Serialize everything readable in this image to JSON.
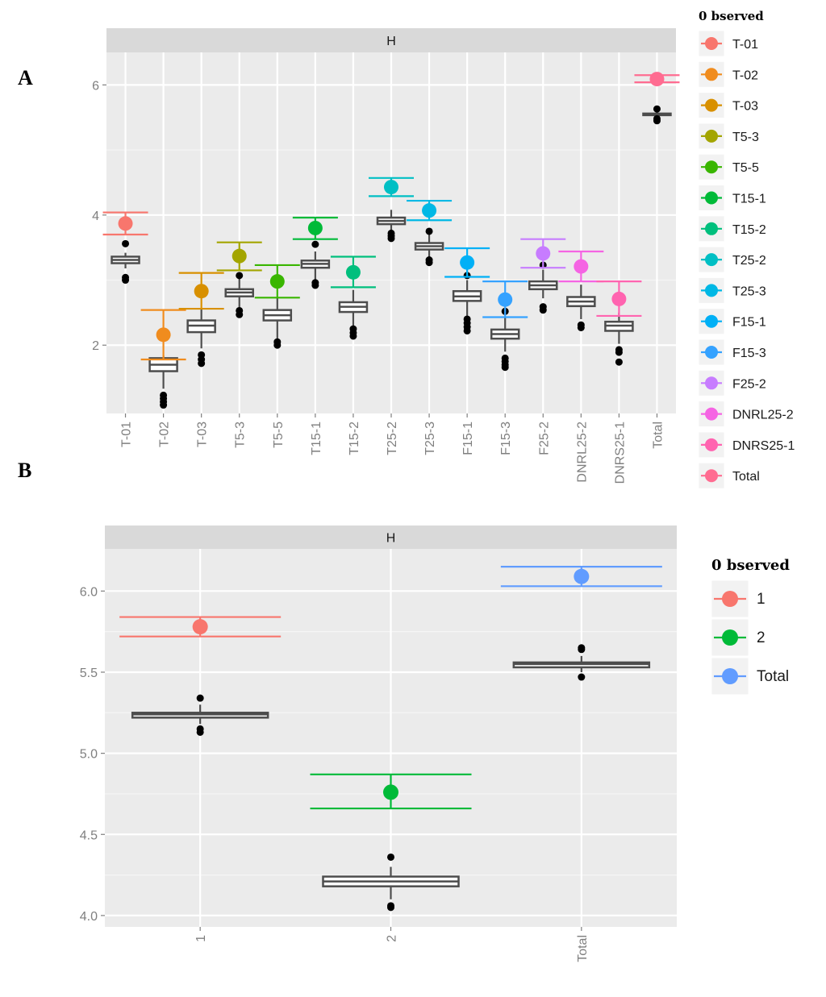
{
  "chart_data": [
    {
      "panel": "A",
      "type": "box",
      "facet_label": "H",
      "ylim": [
        0.95,
        6.5
      ],
      "yticks": [
        2,
        4,
        6
      ],
      "legend_title": "0 bserved",
      "categories": [
        {
          "name": "T-01",
          "color": "#F8766D",
          "obs": 3.87,
          "obs_lo": 3.7,
          "obs_hi": 4.04,
          "box": [
            3.18,
            3.26,
            3.31,
            3.36,
            3.42
          ],
          "out": [
            3.0,
            3.04,
            3.56
          ]
        },
        {
          "name": "T-02",
          "color": "#F08C1E",
          "obs": 2.16,
          "obs_lo": 1.78,
          "obs_hi": 2.54,
          "box": [
            1.33,
            1.6,
            1.7,
            1.8,
            1.84
          ],
          "out": [
            1.08,
            1.13,
            1.18,
            1.23
          ]
        },
        {
          "name": "T-03",
          "color": "#D89000",
          "obs": 2.83,
          "obs_lo": 2.56,
          "obs_hi": 3.11,
          "box": [
            1.95,
            2.2,
            2.3,
            2.38,
            2.56
          ],
          "out": [
            1.72,
            1.78,
            1.85
          ]
        },
        {
          "name": "T5-3",
          "color": "#A3A500",
          "obs": 3.37,
          "obs_lo": 3.15,
          "obs_hi": 3.58,
          "box": [
            2.58,
            2.75,
            2.81,
            2.86,
            3.02
          ],
          "out": [
            2.47,
            2.53,
            3.07
          ]
        },
        {
          "name": "T5-5",
          "color": "#39B600",
          "obs": 2.98,
          "obs_lo": 2.73,
          "obs_hi": 3.23,
          "box": [
            2.1,
            2.38,
            2.46,
            2.54,
            2.73
          ],
          "out": [
            2.0,
            2.05
          ]
        },
        {
          "name": "T15-1",
          "color": "#00BA38",
          "obs": 3.8,
          "obs_lo": 3.63,
          "obs_hi": 3.96,
          "box": [
            3.0,
            3.19,
            3.25,
            3.3,
            3.44
          ],
          "out": [
            2.92,
            2.96,
            3.55
          ]
        },
        {
          "name": "T15-2",
          "color": "#00BF7D",
          "obs": 3.12,
          "obs_lo": 2.89,
          "obs_hi": 3.36,
          "box": [
            2.3,
            2.51,
            2.59,
            2.66,
            2.85
          ],
          "out": [
            2.14,
            2.19,
            2.25
          ]
        },
        {
          "name": "T25-2",
          "color": "#00BFC4",
          "obs": 4.43,
          "obs_lo": 4.29,
          "obs_hi": 4.57,
          "box": [
            3.76,
            3.86,
            3.91,
            3.96,
            4.08
          ],
          "out": [
            3.64,
            3.68,
            3.72
          ]
        },
        {
          "name": "T25-3",
          "color": "#00B8E5",
          "obs": 4.07,
          "obs_lo": 3.92,
          "obs_hi": 4.22,
          "box": [
            3.35,
            3.47,
            3.52,
            3.57,
            3.71
          ],
          "out": [
            3.27,
            3.31,
            3.75
          ]
        },
        {
          "name": "F15-1",
          "color": "#00B0F6",
          "obs": 3.27,
          "obs_lo": 3.05,
          "obs_hi": 3.49,
          "box": [
            2.45,
            2.68,
            2.75,
            2.83,
            3.0
          ],
          "out": [
            2.22,
            2.28,
            2.34,
            2.4,
            3.07
          ]
        },
        {
          "name": "F15-3",
          "color": "#35A2FF",
          "obs": 2.7,
          "obs_lo": 2.43,
          "obs_hi": 2.98,
          "box": [
            1.9,
            2.1,
            2.17,
            2.24,
            2.43
          ],
          "out": [
            1.66,
            1.7,
            1.75,
            1.8,
            2.52
          ]
        },
        {
          "name": "F25-2",
          "color": "#C77CFF",
          "obs": 3.41,
          "obs_lo": 3.19,
          "obs_hi": 3.63,
          "box": [
            2.72,
            2.86,
            2.92,
            2.98,
            3.16
          ],
          "out": [
            2.54,
            2.59,
            3.23
          ]
        },
        {
          "name": "DNRL25-2",
          "color": "#F564E3",
          "obs": 3.21,
          "obs_lo": 2.98,
          "obs_hi": 3.44,
          "box": [
            2.4,
            2.6,
            2.67,
            2.74,
            2.93
          ],
          "out": [
            2.27,
            2.31
          ]
        },
        {
          "name": "DNRS25-1",
          "color": "#FF64B0",
          "obs": 2.71,
          "obs_lo": 2.45,
          "obs_hi": 2.98,
          "box": [
            2.02,
            2.22,
            2.3,
            2.36,
            2.5
          ],
          "out": [
            1.74,
            1.89,
            1.93
          ]
        },
        {
          "name": "Total",
          "color": "#FF6C91",
          "obs": 6.09,
          "obs_lo": 6.04,
          "obs_hi": 6.15,
          "box": [
            5.5,
            5.54,
            5.55,
            5.56,
            5.6
          ],
          "out": [
            5.45,
            5.48,
            5.63
          ]
        }
      ]
    },
    {
      "panel": "B",
      "type": "box",
      "facet_label": "H",
      "ylim": [
        3.93,
        6.26
      ],
      "yticks": [
        4.0,
        4.5,
        5.0,
        5.5,
        6.0
      ],
      "ytick_labels": [
        "4.0",
        "4.5",
        "5.0",
        "5.5",
        "6.0"
      ],
      "legend_title": "0 bserved",
      "categories": [
        {
          "name": "1",
          "color": "#F8766D",
          "obs": 5.78,
          "obs_lo": 5.72,
          "obs_hi": 5.84,
          "box": [
            5.18,
            5.22,
            5.24,
            5.25,
            5.3
          ],
          "out": [
            5.13,
            5.15,
            5.34
          ]
        },
        {
          "name": "2",
          "color": "#00BA38",
          "obs": 4.76,
          "obs_lo": 4.66,
          "obs_hi": 4.87,
          "box": [
            4.1,
            4.18,
            4.21,
            4.24,
            4.3
          ],
          "out": [
            4.05,
            4.06,
            4.36
          ]
        },
        {
          "name": "Total",
          "color": "#619CFF",
          "obs": 6.09,
          "obs_lo": 6.03,
          "obs_hi": 6.15,
          "box": [
            5.5,
            5.53,
            5.55,
            5.56,
            5.6
          ],
          "out": [
            5.47,
            5.64,
            5.65
          ]
        }
      ]
    }
  ],
  "panel_labels": {
    "a": "A",
    "b": "B"
  }
}
